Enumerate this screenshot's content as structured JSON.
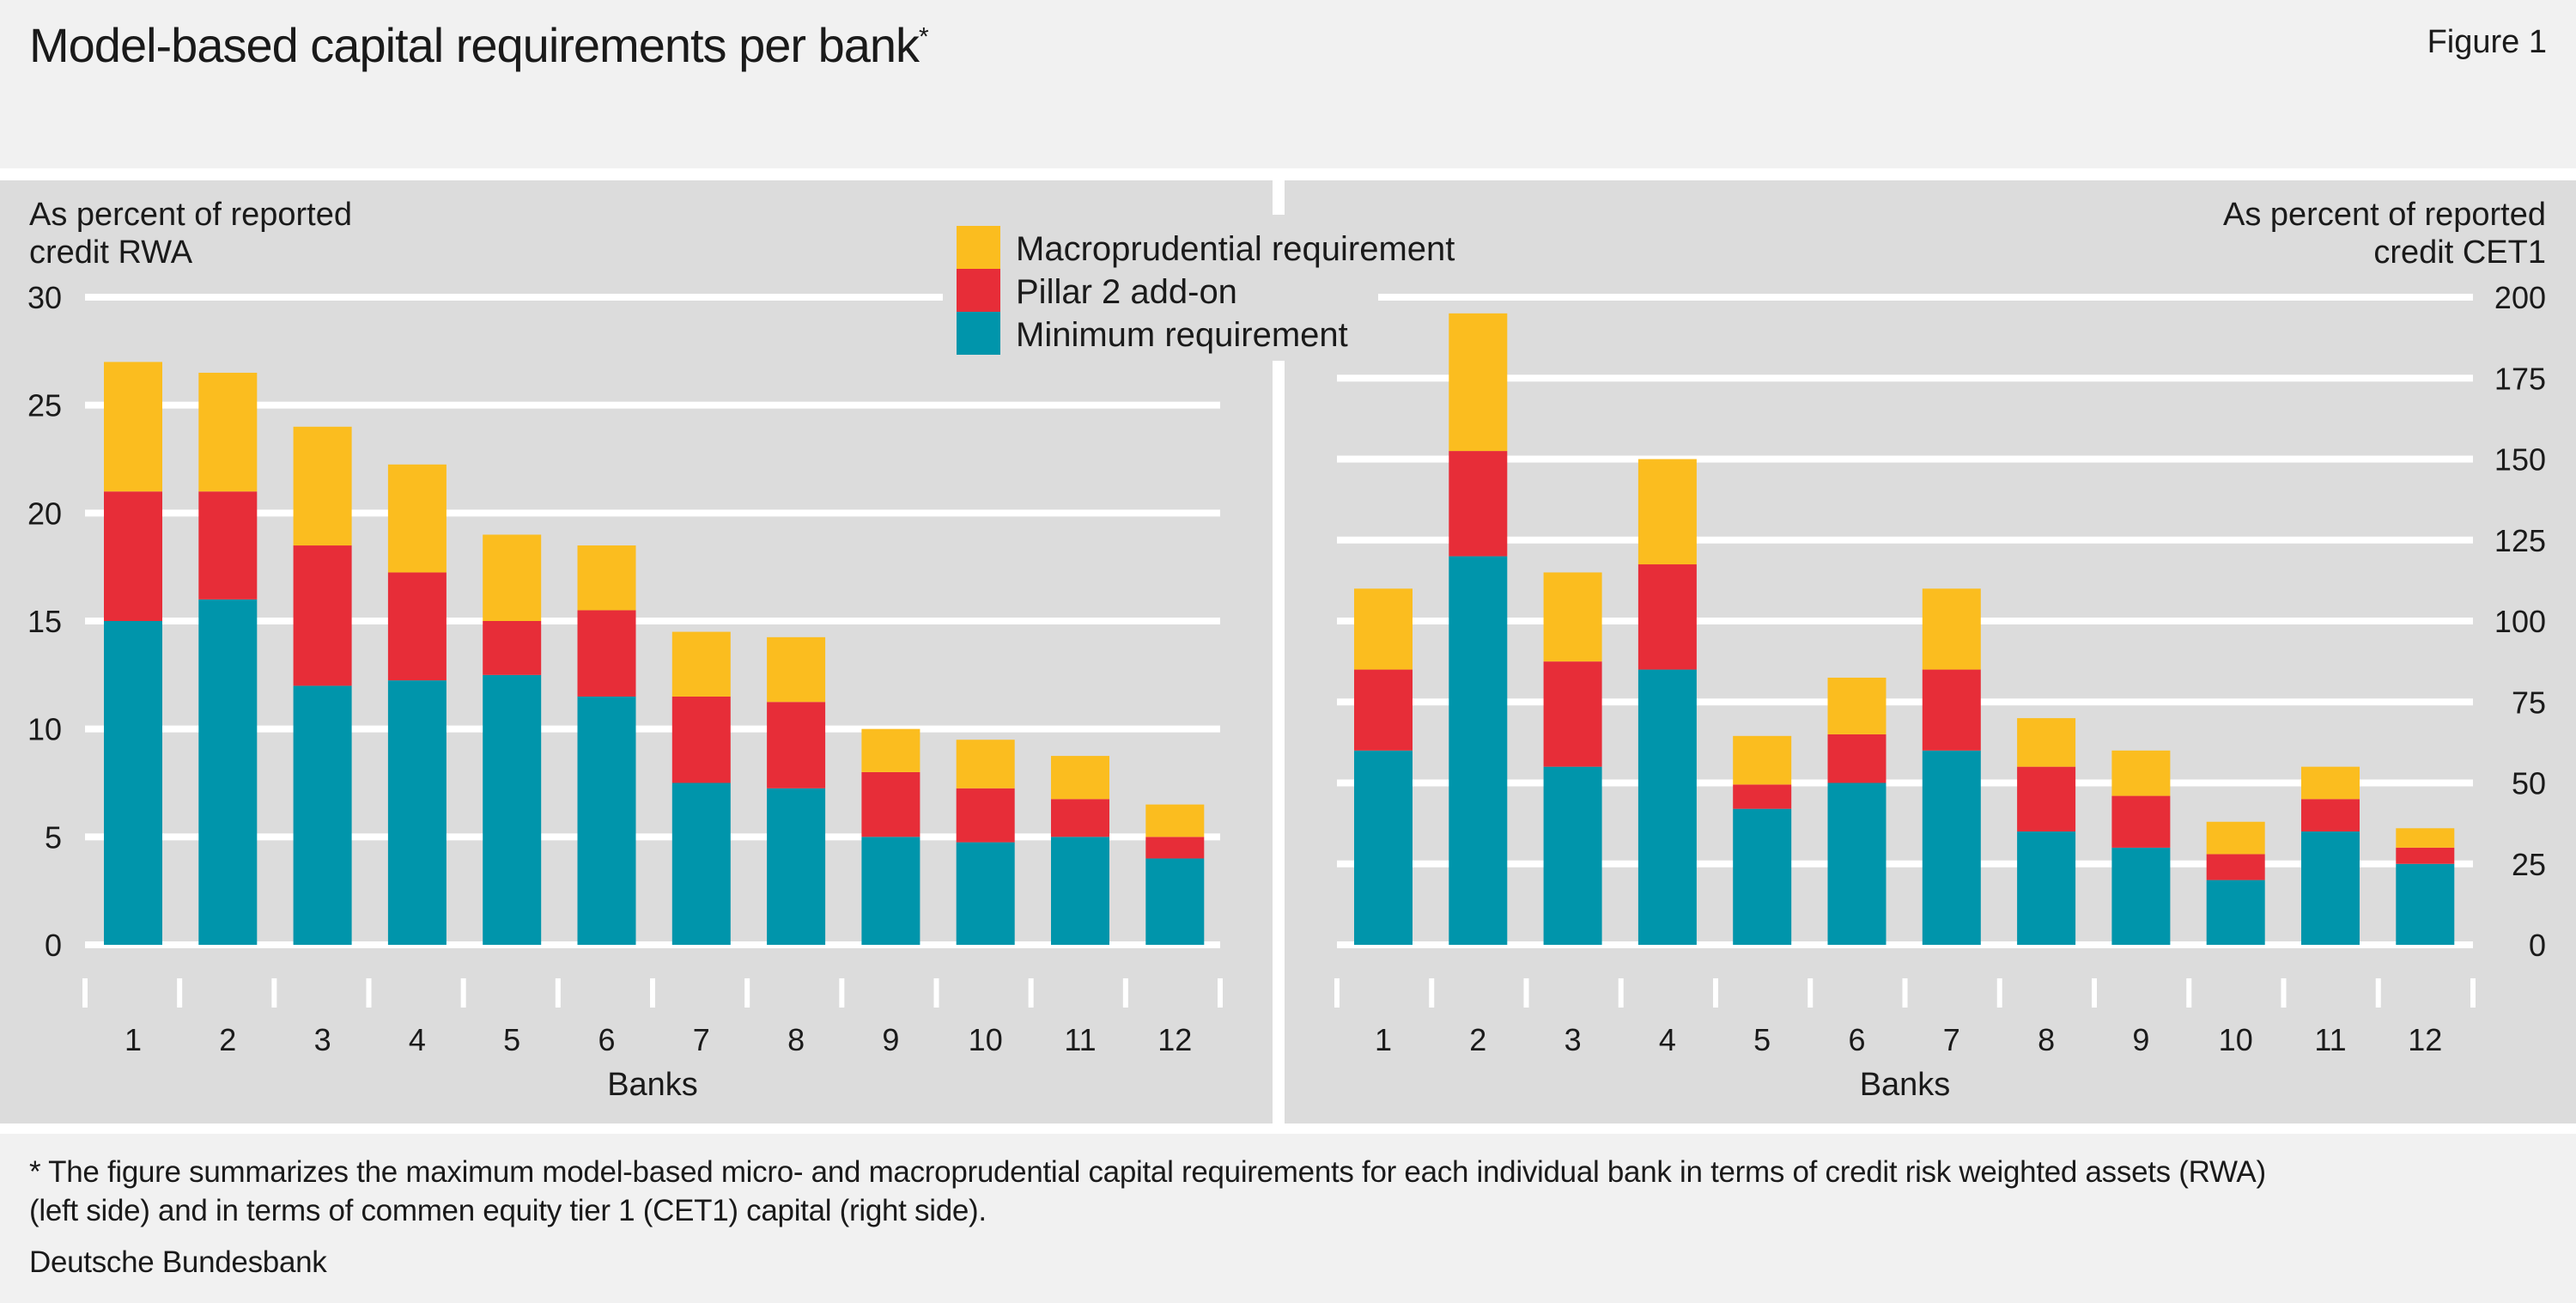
{
  "header": {
    "title": "Model-based capital requirements per bank",
    "title_marker": "*",
    "figure_label": "Figure 1"
  },
  "legend": {
    "items": [
      {
        "label": "Macroprudential requirement",
        "color": "#fbbd1f"
      },
      {
        "label": "Pillar 2 add-on",
        "color": "#e72d38"
      },
      {
        "label": "Minimum requirement",
        "color": "#0095ab"
      }
    ]
  },
  "colors": {
    "panel_bg": "#dcdcdc",
    "page_bg": "#f1f1f1",
    "grid": "#ffffff"
  },
  "chart_data": [
    {
      "type": "bar",
      "stacked": true,
      "ylabel_lines": [
        "As percent of reported",
        "credit RWA"
      ],
      "xlabel": "Banks",
      "categories": [
        "1",
        "2",
        "3",
        "4",
        "5",
        "6",
        "7",
        "8",
        "9",
        "10",
        "11",
        "12"
      ],
      "ylim": [
        0,
        30
      ],
      "yticks": [
        0,
        5,
        10,
        15,
        20,
        25,
        30
      ],
      "y_axis_side": "left",
      "grid": true,
      "series": [
        {
          "name": "Minimum requirement",
          "values": [
            15,
            16,
            12,
            12.25,
            12.5,
            11.5,
            7.5,
            7.25,
            5,
            4.75,
            5,
            4
          ]
        },
        {
          "name": "Pillar 2 add-on",
          "values": [
            6,
            5,
            6.5,
            5,
            2.5,
            4,
            4,
            4,
            3,
            2.5,
            1.75,
            1
          ]
        },
        {
          "name": "Macroprudential requirement",
          "values": [
            6,
            5.5,
            5.5,
            5,
            4,
            3,
            3,
            3,
            2,
            2.25,
            2,
            1.5
          ]
        }
      ]
    },
    {
      "type": "bar",
      "stacked": true,
      "ylabel_lines": [
        "As percent of reported",
        "credit CET1"
      ],
      "xlabel": "Banks",
      "categories": [
        "1",
        "2",
        "3",
        "4",
        "5",
        "6",
        "7",
        "8",
        "9",
        "10",
        "11",
        "12"
      ],
      "ylim": [
        0,
        200
      ],
      "yticks": [
        0,
        25,
        50,
        75,
        100,
        125,
        150,
        175,
        200
      ],
      "y_axis_side": "right",
      "grid": true,
      "series": [
        {
          "name": "Minimum requirement",
          "values": [
            60,
            120,
            55,
            85,
            42,
            50,
            60,
            35,
            30,
            20,
            35,
            25
          ]
        },
        {
          "name": "Pillar 2 add-on",
          "values": [
            25,
            32.5,
            32.5,
            32.5,
            7.5,
            15,
            25,
            20,
            16,
            8,
            10,
            5
          ]
        },
        {
          "name": "Macroprudential requirement",
          "values": [
            25,
            42.5,
            27.5,
            32.5,
            15,
            17.5,
            25,
            15,
            14,
            10,
            10,
            6
          ]
        }
      ]
    }
  ],
  "footer": {
    "note_line1": "* The figure summarizes the maximum model-based micro- and macroprudential capital requirements for each individual bank in terms of credit risk weighted assets (RWA)",
    "note_line2": "(left side) and in terms of commen equity tier 1 (CET1) capital (right side).",
    "source": "Deutsche Bundesbank"
  }
}
